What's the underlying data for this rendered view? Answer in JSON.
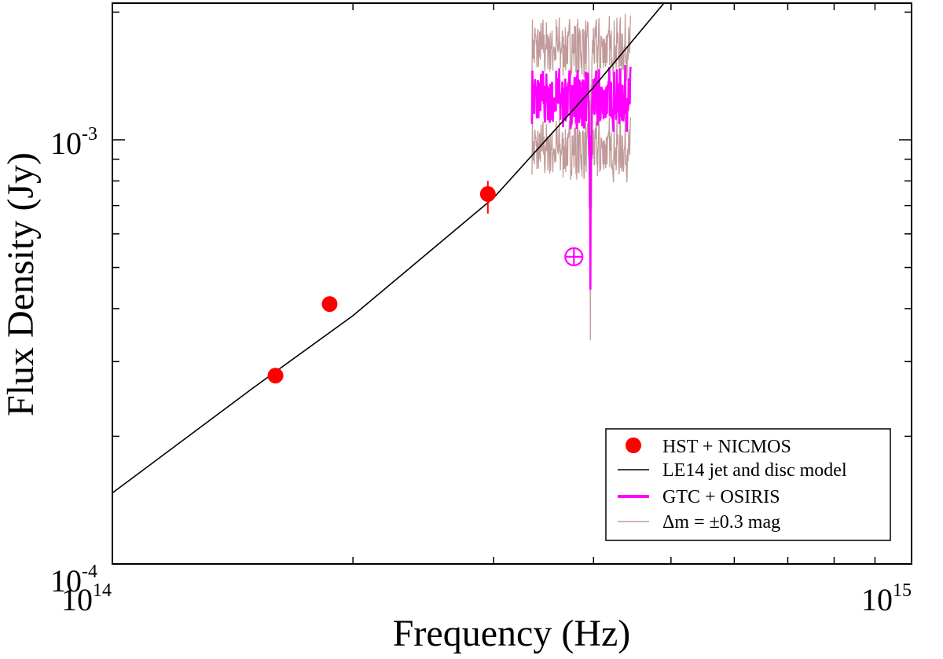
{
  "chart_data": {
    "type": "scatter",
    "xscale": "log",
    "yscale": "log",
    "xlabel": "Frequency (Hz)",
    "ylabel": "Flux Density (Jy)",
    "xlim": [
      100000000000000.0,
      1000000000000000.0
    ],
    "ylim": [
      0.0001,
      0.0021
    ],
    "x_ticks": [
      {
        "base": "10",
        "exp": "14",
        "value": 100000000000000.0
      },
      {
        "base": "10",
        "exp": "15",
        "value": 1000000000000000.0
      }
    ],
    "y_ticks": [
      {
        "base": "10",
        "exp": "-4",
        "value": 0.0001
      },
      {
        "base": "10",
        "exp": "-3",
        "value": 0.001
      }
    ],
    "series": [
      {
        "name": "HST + NICMOS",
        "kind": "points",
        "color": "#ff0000",
        "points": [
          {
            "x": 160000000000000.0,
            "y": 0.000278,
            "err": [
              0.0,
              0.0
            ]
          },
          {
            "x": 187000000000000.0,
            "y": 0.00041,
            "err": [
              1e-05,
              1e-05
            ]
          },
          {
            "x": 295000000000000.0,
            "y": 0.000745,
            "err": [
              7.5e-05,
              5.5e-05
            ]
          }
        ]
      },
      {
        "name": "LE14 jet and disc model",
        "kind": "line",
        "color": "#000000",
        "x": [
          100000000000000.0,
          120000000000000.0,
          150000000000000.0,
          200000000000000.0,
          300000000000000.0,
          400000000000000.0,
          490000000000000.0
        ],
        "y": [
          0.000147,
          0.00019,
          0.00026,
          0.000385,
          0.00073,
          0.00133,
          0.0021
        ]
      },
      {
        "name": "GTC + OSIRIS",
        "kind": "spectrum",
        "color": "#ff00ff",
        "x_range": [
          335000000000000.0,
          445000000000000.0
        ],
        "center_y": 0.00125
      },
      {
        "name": "Δm = ±0.3 mag",
        "kind": "spectrum-band",
        "color": "#c19a9a",
        "x_range": [
          335000000000000.0,
          445000000000000.0
        ],
        "upper_y": 0.00165,
        "lower_y": 0.00095
      }
    ],
    "annotations": [
      {
        "symbol": "⊕",
        "x": 378000000000000.0,
        "y": 0.00053,
        "color": "#ff00ff"
      }
    ],
    "legend": {
      "position": "bottom-right",
      "entries": [
        {
          "label": "HST + NICMOS",
          "marker": "circle",
          "color": "#ff0000"
        },
        {
          "label": "LE14 jet and disc model",
          "marker": "line",
          "color": "#000000"
        },
        {
          "label": "GTC + OSIRIS",
          "marker": "thick-line",
          "color": "#ff00ff"
        },
        {
          "label": "Δm = ±0.3 mag",
          "marker": "line",
          "color": "#c19a9a"
        }
      ]
    }
  }
}
